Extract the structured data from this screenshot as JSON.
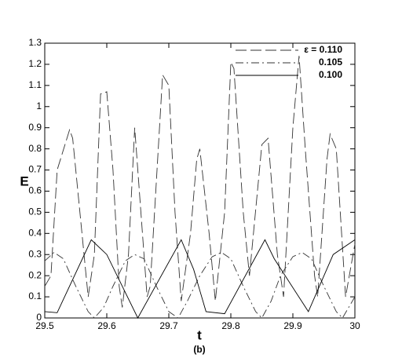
{
  "chart_data": {
    "type": "line",
    "x_label": "t",
    "y_label": "E",
    "caption": "(b)",
    "xlim": [
      29.5,
      30
    ],
    "xticks": [
      29.5,
      29.6,
      29.7,
      29.8,
      29.9,
      30
    ],
    "ylim": [
      0,
      1.3
    ],
    "yticks": [
      0,
      0.1,
      0.2,
      0.3,
      0.4,
      0.5,
      0.6,
      0.7,
      0.8,
      0.9,
      1,
      1.1,
      1.2,
      1.3
    ],
    "legend": "top-right",
    "series": [
      {
        "name": "ε = 0.110",
        "color": "#333333",
        "style": "dashed",
        "x": [
          29.5,
          29.51,
          29.52,
          29.54,
          29.545,
          29.56,
          29.57,
          29.58,
          29.59,
          29.6,
          29.61,
          29.62,
          29.625,
          29.635,
          29.645,
          29.655,
          29.665,
          29.67,
          29.69,
          29.7,
          29.71,
          29.72,
          29.735,
          29.745,
          29.75,
          29.765,
          29.775,
          29.79,
          29.8,
          29.805,
          29.82,
          29.83,
          29.85,
          29.86,
          29.875,
          29.885,
          29.9,
          29.91,
          29.92,
          29.935,
          29.94,
          29.955,
          29.96,
          29.97,
          29.985,
          30
        ],
        "values": [
          0.15,
          0.2,
          0.7,
          0.89,
          0.85,
          0.4,
          0.1,
          0.3,
          1.06,
          1.07,
          0.7,
          0.15,
          0.05,
          0.3,
          0.9,
          0.5,
          0.1,
          0.15,
          1.15,
          1.1,
          0.5,
          0.08,
          0.4,
          0.75,
          0.8,
          0.4,
          0.08,
          0.5,
          1.21,
          1.18,
          0.5,
          0.2,
          0.82,
          0.85,
          0.3,
          0.1,
          0.9,
          1.24,
          0.8,
          0.2,
          0.1,
          0.75,
          0.87,
          0.8,
          0.1,
          0.35
        ]
      },
      {
        "name": "0.105",
        "color": "#333333",
        "style": "dashdot",
        "x": [
          29.5,
          29.515,
          29.53,
          29.55,
          29.57,
          29.58,
          29.595,
          29.61,
          29.63,
          29.645,
          29.66,
          29.68,
          29.7,
          29.715,
          29.73,
          29.75,
          29.77,
          29.785,
          29.8,
          29.82,
          29.84,
          29.85,
          29.865,
          29.88,
          29.9,
          29.915,
          29.93,
          29.95,
          29.97,
          29.98,
          30
        ],
        "values": [
          0.27,
          0.31,
          0.28,
          0.15,
          0.03,
          0,
          0.05,
          0.15,
          0.27,
          0.3,
          0.28,
          0.15,
          0.03,
          0,
          0.08,
          0.2,
          0.29,
          0.31,
          0.28,
          0.15,
          0.03,
          0,
          0.08,
          0.2,
          0.29,
          0.31,
          0.28,
          0.15,
          0.03,
          0,
          0.1
        ]
      },
      {
        "name": "0.100",
        "color": "#000000",
        "style": "solid",
        "x": [
          29.5,
          29.52,
          29.575,
          29.6,
          29.65,
          29.72,
          29.74,
          29.76,
          29.79,
          29.855,
          29.87,
          29.925,
          29.965,
          30
        ],
        "values": [
          0.03,
          0.025,
          0.37,
          0.3,
          0,
          0.37,
          0.23,
          0.03,
          0.02,
          0.37,
          0.28,
          0.03,
          0.3,
          0.37
        ]
      }
    ]
  }
}
